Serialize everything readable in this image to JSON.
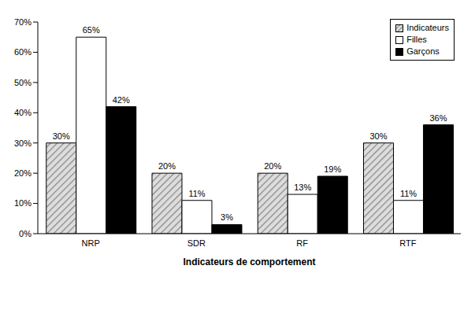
{
  "chart_data": {
    "type": "bar",
    "x_label": "Indicateurs de comportement",
    "categories": [
      "NRP",
      "SDR",
      "RF",
      "RTF"
    ],
    "series": [
      {
        "name": "Indicateurs",
        "color": "#888888",
        "values": [
          30,
          20,
          20,
          30
        ],
        "value_labels": [
          "30%",
          "20%",
          "20%",
          "30%"
        ]
      },
      {
        "name": "Filles",
        "color": "#ffffff",
        "values": [
          65,
          11,
          13,
          11
        ],
        "value_labels": [
          "65%",
          "11%",
          "13%",
          "11%"
        ]
      },
      {
        "name": "Garçons",
        "color": "#000000",
        "values": [
          42,
          3,
          19,
          36
        ],
        "value_labels": [
          "42%",
          "3%",
          "19%",
          "36%"
        ]
      }
    ],
    "ylim": [
      0,
      70
    ],
    "yticks": [
      {
        "value": 0,
        "label": "0%"
      },
      {
        "value": 10,
        "label": "10%"
      },
      {
        "value": 20,
        "label": "20%"
      },
      {
        "value": 30,
        "label": "30%"
      },
      {
        "value": 40,
        "label": "40%"
      },
      {
        "value": 50,
        "label": "50%"
      },
      {
        "value": 60,
        "label": "60%"
      },
      {
        "value": 70,
        "label": "70%"
      }
    ],
    "grid": false,
    "legend": "top-right",
    "data_labels": true
  }
}
